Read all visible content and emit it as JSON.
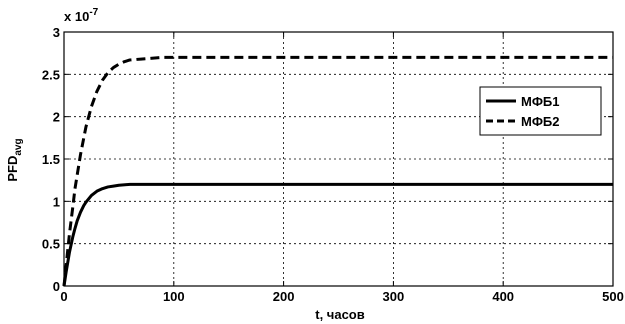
{
  "chart_data": {
    "type": "line",
    "title": "",
    "xlabel": "t, часов",
    "ylabel_main": "PFD",
    "ylabel_sub": "avg",
    "y_multiplier_base": "x 10",
    "y_multiplier_exp": "-7",
    "xlim": [
      0,
      500
    ],
    "ylim": [
      0,
      3
    ],
    "x_ticks": [
      0,
      100,
      200,
      300,
      400,
      500
    ],
    "y_ticks": [
      0,
      0.5,
      1,
      1.5,
      2,
      2.5,
      3
    ],
    "x_tick_labels": [
      "0",
      "100",
      "200",
      "300",
      "400",
      "500"
    ],
    "y_tick_labels": [
      "0",
      "0.5",
      "1",
      "1.5",
      "2",
      "2.5",
      "3"
    ],
    "grid": true,
    "legend_position": "right",
    "series": [
      {
        "name": "МФБ1",
        "line_style": "solid",
        "color": "#000000",
        "x": [
          0,
          2,
          5,
          8,
          10,
          12,
          15,
          18,
          20,
          25,
          30,
          35,
          40,
          45,
          50,
          60,
          70,
          80,
          100,
          150,
          200,
          300,
          400,
          500
        ],
        "y": [
          0,
          0.17,
          0.4,
          0.58,
          0.68,
          0.77,
          0.87,
          0.95,
          0.99,
          1.07,
          1.12,
          1.15,
          1.17,
          1.18,
          1.19,
          1.2,
          1.2,
          1.2,
          1.2,
          1.2,
          1.2,
          1.2,
          1.2,
          1.2
        ]
      },
      {
        "name": "МФБ2",
        "line_style": "dashed",
        "color": "#000000",
        "x": [
          0,
          2,
          5,
          8,
          10,
          15,
          20,
          25,
          30,
          35,
          40,
          45,
          50,
          55,
          60,
          70,
          80,
          90,
          100,
          150,
          200,
          300,
          400,
          500
        ],
        "y": [
          0,
          0.25,
          0.62,
          0.93,
          1.15,
          1.55,
          1.88,
          2.12,
          2.3,
          2.43,
          2.52,
          2.58,
          2.62,
          2.65,
          2.67,
          2.68,
          2.69,
          2.7,
          2.7,
          2.7,
          2.7,
          2.7,
          2.7,
          2.7
        ]
      }
    ]
  }
}
